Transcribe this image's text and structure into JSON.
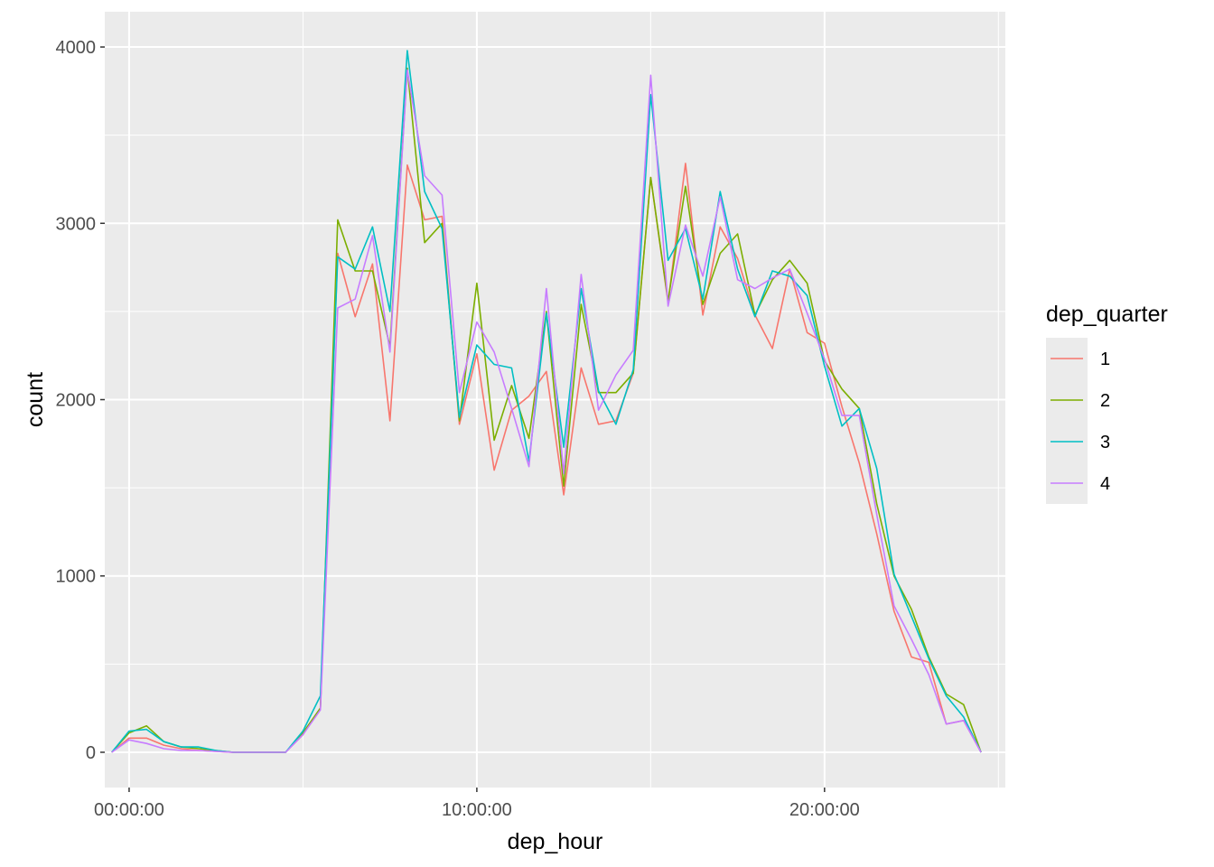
{
  "chart_data": {
    "type": "line",
    "xlabel": "dep_hour",
    "ylabel": "count",
    "x_unit": "hours",
    "xlim": [
      -0.7,
      25.2
    ],
    "ylim": [
      -200,
      4200
    ],
    "x_ticks": [
      {
        "value": 0,
        "label": "00:00:00"
      },
      {
        "value": 10,
        "label": "10:00:00"
      },
      {
        "value": 20,
        "label": "20:00:00"
      }
    ],
    "y_ticks": [
      {
        "value": 0,
        "label": "0"
      },
      {
        "value": 1000,
        "label": "1000"
      },
      {
        "value": 2000,
        "label": "2000"
      },
      {
        "value": 3000,
        "label": "3000"
      },
      {
        "value": 4000,
        "label": "4000"
      }
    ],
    "grid": true,
    "legend": {
      "title": "dep_quarter",
      "position": "right"
    },
    "x": [
      -0.5,
      0,
      0.5,
      1,
      1.5,
      2,
      2.5,
      3,
      3.5,
      4,
      4.5,
      5,
      5.5,
      6,
      6.5,
      7,
      7.5,
      8,
      8.5,
      9,
      9.5,
      10,
      10.5,
      11,
      11.5,
      12,
      12.5,
      13,
      13.5,
      14,
      14.5,
      15,
      15.5,
      16,
      16.5,
      17,
      17.5,
      18,
      18.5,
      19,
      19.5,
      20,
      20.5,
      21,
      21.5,
      22,
      22.5,
      23,
      23.5,
      24,
      24.5
    ],
    "series": [
      {
        "name": "1",
        "color": "#F8766D",
        "values": [
          0,
          80,
          80,
          40,
          20,
          10,
          5,
          0,
          0,
          0,
          0,
          100,
          250,
          2830,
          2470,
          2770,
          1880,
          3330,
          3020,
          3040,
          1860,
          2260,
          1600,
          1940,
          2020,
          2160,
          1460,
          2180,
          1860,
          1880,
          2150,
          3260,
          2550,
          3340,
          2480,
          2980,
          2800,
          2480,
          2290,
          2740,
          2380,
          2320,
          1960,
          1640,
          1240,
          800,
          540,
          510,
          160,
          180,
          0
        ]
      },
      {
        "name": "2",
        "color": "#7CAE00",
        "values": [
          0,
          110,
          150,
          60,
          30,
          20,
          10,
          0,
          0,
          0,
          0,
          110,
          250,
          3020,
          2730,
          2730,
          2300,
          3880,
          2890,
          3000,
          1880,
          2660,
          1770,
          2080,
          1780,
          2500,
          1510,
          2540,
          2040,
          2040,
          2150,
          3260,
          2560,
          3210,
          2540,
          2830,
          2940,
          2480,
          2680,
          2790,
          2660,
          2220,
          2060,
          1950,
          1410,
          1000,
          810,
          540,
          330,
          270,
          0
        ]
      },
      {
        "name": "3",
        "color": "#00BFC4",
        "values": [
          0,
          120,
          130,
          60,
          30,
          30,
          10,
          0,
          0,
          0,
          0,
          120,
          320,
          2810,
          2740,
          2980,
          2500,
          3980,
          3180,
          2970,
          1900,
          2310,
          2200,
          2180,
          1650,
          2490,
          1730,
          2630,
          2050,
          1860,
          2170,
          3730,
          2790,
          2970,
          2570,
          3180,
          2740,
          2470,
          2730,
          2700,
          2590,
          2190,
          1850,
          1950,
          1610,
          1010,
          770,
          530,
          320,
          200,
          0
        ]
      },
      {
        "name": "4",
        "color": "#C77CFF",
        "values": [
          0,
          70,
          50,
          20,
          10,
          10,
          5,
          0,
          0,
          0,
          0,
          100,
          240,
          2520,
          2570,
          2930,
          2270,
          3870,
          3270,
          3160,
          2040,
          2440,
          2270,
          1950,
          1620,
          2630,
          1580,
          2710,
          1940,
          2140,
          2280,
          3840,
          2530,
          2990,
          2700,
          3150,
          2680,
          2630,
          2690,
          2740,
          2490,
          2230,
          1910,
          1910,
          1350,
          830,
          640,
          440,
          160,
          180,
          0
        ]
      }
    ]
  }
}
